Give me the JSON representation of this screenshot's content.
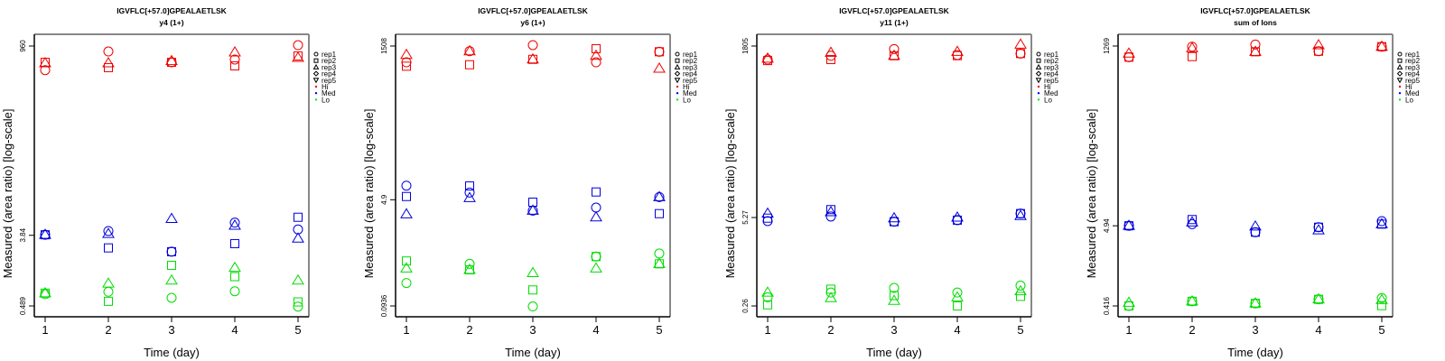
{
  "legend": {
    "items": [
      {
        "label": "rep1",
        "symbol": "circle"
      },
      {
        "label": "rep2",
        "symbol": "square"
      },
      {
        "label": "rep3",
        "symbol": "triangle"
      },
      {
        "label": "rep4",
        "symbol": "diamond"
      },
      {
        "label": "rep5",
        "symbol": "triangle-down"
      },
      {
        "label": "Hi",
        "symbol": "dot",
        "color": "#ff0000"
      },
      {
        "label": "Med",
        "symbol": "dot",
        "color": "#0000ff"
      },
      {
        "label": "Lo",
        "symbol": "dot",
        "color": "#00ee00"
      }
    ]
  },
  "colors": {
    "Hi": "#ee0000",
    "Med": "#0000dd",
    "Lo": "#00dd00",
    "frame": "#888888"
  },
  "chart_data": [
    {
      "type": "scatter",
      "title": "IGVFLC[+57.0]GPEALAETLSK",
      "subtitle": "y4 (1+)",
      "xlabel": "Time (day)",
      "ylabel": "Measured (area ratio) [log-scale]",
      "x_ticks": [
        "1",
        "2",
        "3",
        "4",
        "5"
      ],
      "y_ticks": [
        "960",
        "3.84",
        "0.489"
      ],
      "y_tick_values": [
        960,
        3.84,
        0.489
      ],
      "yscale": "log",
      "x": [
        1,
        2,
        3,
        4,
        5
      ],
      "series": [
        {
          "group": "Hi",
          "rep": "rep1",
          "values": [
            475,
            819,
            597,
            647,
            985
          ]
        },
        {
          "group": "Hi",
          "rep": "rep2",
          "values": [
            597,
            511,
            597,
            538,
            718
          ]
        },
        {
          "group": "Hi",
          "rep": "rep3",
          "values": [
            582,
            582,
            620,
            798,
            681
          ]
        },
        {
          "group": "Med",
          "rep": "rep1",
          "values": [
            3.9,
            4.35,
            2.38,
            5.56,
            4.56
          ]
        },
        {
          "group": "Med",
          "rep": "rep2",
          "values": [
            3.9,
            2.66,
            2.38,
            3.01,
            6.5
          ]
        },
        {
          "group": "Med",
          "rep": "rep3",
          "values": [
            3.9,
            4.0,
            6.2,
            5.1,
            3.5
          ]
        },
        {
          "group": "Lo",
          "rep": "rep1",
          "values": [
            0.69,
            0.74,
            0.62,
            0.75,
            0.48
          ]
        },
        {
          "group": "Lo",
          "rep": "rep2",
          "values": [
            0.71,
            0.56,
            1.6,
            1.15,
            0.55
          ]
        },
        {
          "group": "Lo",
          "rep": "rep3",
          "values": [
            0.71,
            0.94,
            1.03,
            1.49,
            1.03
          ]
        }
      ]
    },
    {
      "type": "scatter",
      "title": "IGVFLC[+57.0]GPEALAETLSK",
      "subtitle": "y6 (1+)",
      "xlabel": "Time (day)",
      "ylabel": "Measured (area ratio) [log-scale]",
      "x_ticks": [
        "1",
        "2",
        "3",
        "4",
        "5"
      ],
      "y_ticks": [
        "1508",
        "4.9",
        "0.0936"
      ],
      "y_tick_values": [
        1508,
        4.9,
        0.0936
      ],
      "yscale": "log",
      "x": [
        1,
        2,
        3,
        4,
        5
      ],
      "series": [
        {
          "group": "Hi",
          "rep": "rep1",
          "values": [
            822,
            1245,
            1560,
            822,
            1219
          ]
        },
        {
          "group": "Hi",
          "rep": "rep2",
          "values": [
            711,
            751,
            918,
            1362,
            1219
          ]
        },
        {
          "group": "Hi",
          "rep": "rep3",
          "values": [
            1087,
            1245,
            918,
            1052,
            650
          ]
        },
        {
          "group": "Med",
          "rep": "rep1",
          "values": [
            8.28,
            6.41,
            3.27,
            3.66,
            5.42
          ]
        },
        {
          "group": "Med",
          "rep": "rep2",
          "values": [
            5.53,
            8.2,
            4.48,
            6.55,
            2.92
          ]
        },
        {
          "group": "Med",
          "rep": "rep3",
          "values": [
            2.86,
            5.24,
            3.27,
            2.55,
            5.42
          ]
        },
        {
          "group": "Lo",
          "rep": "rep1",
          "values": [
            0.22,
            0.45,
            0.092,
            0.59,
            0.66
          ]
        },
        {
          "group": "Lo",
          "rep": "rep2",
          "values": [
            0.5,
            0.36,
            0.17,
            0.59,
            0.45
          ]
        },
        {
          "group": "Lo",
          "rep": "rep3",
          "values": [
            0.38,
            0.36,
            0.32,
            0.38,
            0.45
          ]
        }
      ]
    },
    {
      "type": "scatter",
      "title": "IGVFLC[+57.0]GPEALAETLSK",
      "subtitle": "y11 (1+)",
      "xlabel": "Time (day)",
      "ylabel": "Measured (area ratio) [log-scale]",
      "x_ticks": [
        "1",
        "2",
        "3",
        "4",
        "5"
      ],
      "y_ticks": [
        "1805",
        "5.27",
        "0.26"
      ],
      "y_tick_values": [
        1805,
        5.27,
        0.26
      ],
      "yscale": "log",
      "x": [
        1,
        2,
        3,
        4,
        5
      ],
      "series": [
        {
          "group": "Hi",
          "rep": "rep1",
          "values": [
            1138,
            1297,
            1629,
            1328,
            1396
          ]
        },
        {
          "group": "Hi",
          "rep": "rep2",
          "values": [
            1100,
            1138,
            1297,
            1300,
            1396
          ]
        },
        {
          "group": "Hi",
          "rep": "rep3",
          "values": [
            1180,
            1441,
            1297,
            1486,
            1900
          ]
        },
        {
          "group": "Med",
          "rep": "rep1",
          "values": [
            4.67,
            5.45,
            4.57,
            4.82,
            6.03
          ]
        },
        {
          "group": "Med",
          "rep": "rep2",
          "values": [
            5.16,
            6.9,
            4.57,
            4.82,
            6.03
          ]
        },
        {
          "group": "Med",
          "rep": "rep3",
          "values": [
            6.03,
            6.35,
            5.16,
            5.27,
            5.56
          ]
        },
        {
          "group": "Lo",
          "rep": "rep1",
          "values": [
            0.35,
            0.41,
            0.48,
            0.41,
            0.52
          ]
        },
        {
          "group": "Lo",
          "rep": "rep2",
          "values": [
            0.27,
            0.46,
            0.37,
            0.26,
            0.36
          ]
        },
        {
          "group": "Lo",
          "rep": "rep3",
          "values": [
            0.41,
            0.34,
            0.31,
            0.35,
            0.43
          ]
        }
      ]
    },
    {
      "type": "scatter",
      "title": "IGVFLC[+57.0]GPEALAETLSK",
      "subtitle": "sum of Ions",
      "xlabel": "Time (day)",
      "ylabel": "Measured (area ratio) [log-scale]",
      "x_ticks": [
        "1",
        "2",
        "3",
        "4",
        "5"
      ],
      "y_ticks": [
        "1269",
        "4.94",
        "0.416"
      ],
      "y_tick_values": [
        1269,
        4.94,
        0.416
      ],
      "yscale": "log",
      "x": [
        1,
        2,
        3,
        4,
        5
      ],
      "series": [
        {
          "group": "Hi",
          "rep": "rep1",
          "values": [
            900,
            1244,
            1329,
            1081,
            1244
          ]
        },
        {
          "group": "Hi",
          "rep": "rep2",
          "values": [
            900,
            916,
            1063,
            1081,
            1244
          ]
        },
        {
          "group": "Hi",
          "rep": "rep3",
          "values": [
            1007,
            1189,
            1063,
            1303,
            1244
          ]
        },
        {
          "group": "Med",
          "rep": "rep1",
          "values": [
            4.94,
            5.2,
            4.05,
            4.73,
            5.7
          ]
        },
        {
          "group": "Med",
          "rep": "rep2",
          "values": [
            4.94,
            5.99,
            4.05,
            4.73,
            5.2
          ]
        },
        {
          "group": "Med",
          "rep": "rep3",
          "values": [
            4.94,
            5.5,
            4.84,
            4.31,
            5.2
          ]
        },
        {
          "group": "Lo",
          "rep": "rep1",
          "values": [
            0.416,
            0.48,
            0.45,
            0.51,
            0.53
          ]
        },
        {
          "group": "Lo",
          "rep": "rep2",
          "values": [
            0.416,
            0.48,
            0.45,
            0.51,
            0.42
          ]
        },
        {
          "group": "Lo",
          "rep": "rep3",
          "values": [
            0.46,
            0.48,
            0.45,
            0.51,
            0.5
          ]
        }
      ]
    }
  ]
}
